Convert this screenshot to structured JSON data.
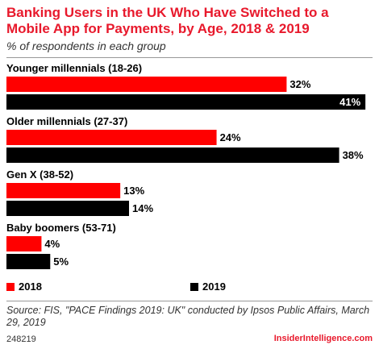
{
  "chart_data": {
    "type": "bar",
    "orientation": "horizontal",
    "title": "Banking Users in the UK Who Have Switched to a Mobile App for Payments, by Age, 2018 & 2019",
    "subtitle": "% of respondents in each group",
    "categories": [
      "Younger millennials (18-26)",
      "Older millennials (27-37)",
      "Gen X (38-52)",
      "Baby boomers (53-71)"
    ],
    "series": [
      {
        "name": "2018",
        "color": "#ff0000",
        "values": [
          32,
          24,
          13,
          4
        ],
        "labels": [
          "32%",
          "24%",
          "13%",
          "4%"
        ]
      },
      {
        "name": "2019",
        "color": "#000000",
        "values": [
          41,
          38,
          14,
          5
        ],
        "labels": [
          "41%",
          "38%",
          "14%",
          "5%"
        ]
      }
    ],
    "xlim": [
      0,
      42
    ],
    "grid": false,
    "legend_position": "bottom-left"
  },
  "source": "Source: FIS, \"PACE Findings 2019: UK\" conducted by Ipsos Public Affairs, March 29, 2019",
  "footer_id": "248219",
  "brand": "InsiderIntelligence.com",
  "colors": {
    "accent": "#e8192c",
    "series_2018": "#ff0000",
    "series_2019": "#000000"
  }
}
